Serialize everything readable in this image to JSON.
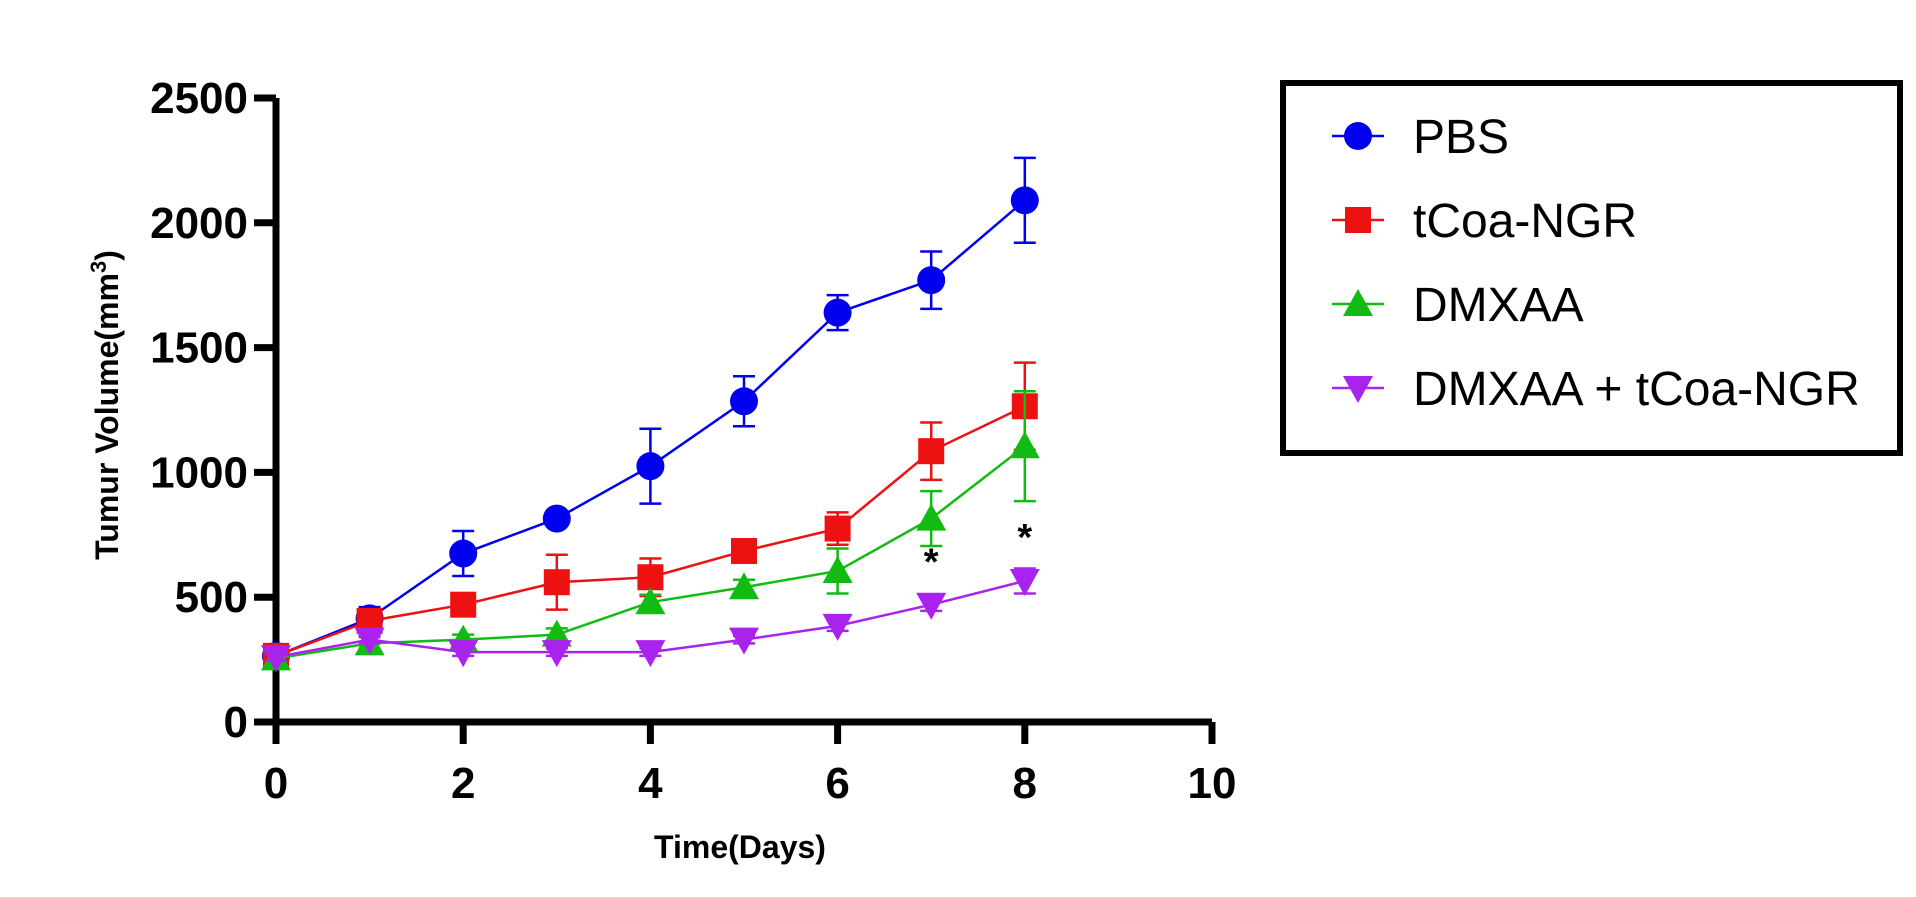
{
  "chart_data": {
    "type": "line",
    "title": "",
    "xlabel": "Time(Days)",
    "ylabel": "Tumur Volume(mm",
    "ylabel_superscript": "3",
    "ylabel_suffix": ")",
    "xlim": [
      0,
      10
    ],
    "ylim": [
      0,
      2500
    ],
    "x_ticks": [
      0,
      2,
      4,
      6,
      8,
      10
    ],
    "y_ticks": [
      0,
      500,
      1000,
      1500,
      2000,
      2500
    ],
    "x_tick_labels": [
      "0",
      "2",
      "4",
      "6",
      "8",
      "10"
    ],
    "y_tick_labels": [
      "0",
      "500",
      "1000",
      "1500",
      "2000",
      "2500"
    ],
    "grid": false,
    "legend_position": "top-right",
    "x": [
      0,
      1,
      2,
      3,
      4,
      5,
      6,
      7,
      8
    ],
    "series": [
      {
        "name": "PBS",
        "color": "#0000ee",
        "marker": "circle",
        "values": [
          265,
          415,
          675,
          815,
          1025,
          1285,
          1640,
          1770,
          2090
        ],
        "errors": [
          25,
          45,
          90,
          25,
          150,
          100,
          70,
          115,
          170
        ]
      },
      {
        "name": "tCoa-NGR",
        "color": "#ee1111",
        "marker": "square",
        "values": [
          265,
          405,
          470,
          560,
          580,
          685,
          775,
          1085,
          1265
        ],
        "errors": [
          20,
          30,
          35,
          110,
          75,
          40,
          65,
          115,
          175
        ]
      },
      {
        "name": "DMXAA",
        "color": "#11bb11",
        "marker": "triangle-up",
        "values": [
          255,
          315,
          330,
          350,
          480,
          540,
          605,
          815,
          1105
        ],
        "errors": [
          20,
          25,
          20,
          25,
          30,
          30,
          90,
          110,
          220
        ]
      },
      {
        "name": "DMXAA + tCoa-NGR",
        "color": "#aa22ee",
        "marker": "triangle-down",
        "values": [
          260,
          330,
          280,
          280,
          280,
          330,
          385,
          470,
          565
        ],
        "errors": [
          15,
          15,
          15,
          15,
          15,
          15,
          20,
          25,
          50
        ]
      }
    ],
    "annotations": [
      {
        "text": "*",
        "x": 7,
        "y": 590
      },
      {
        "text": "*",
        "x": 8,
        "y": 690
      }
    ]
  }
}
